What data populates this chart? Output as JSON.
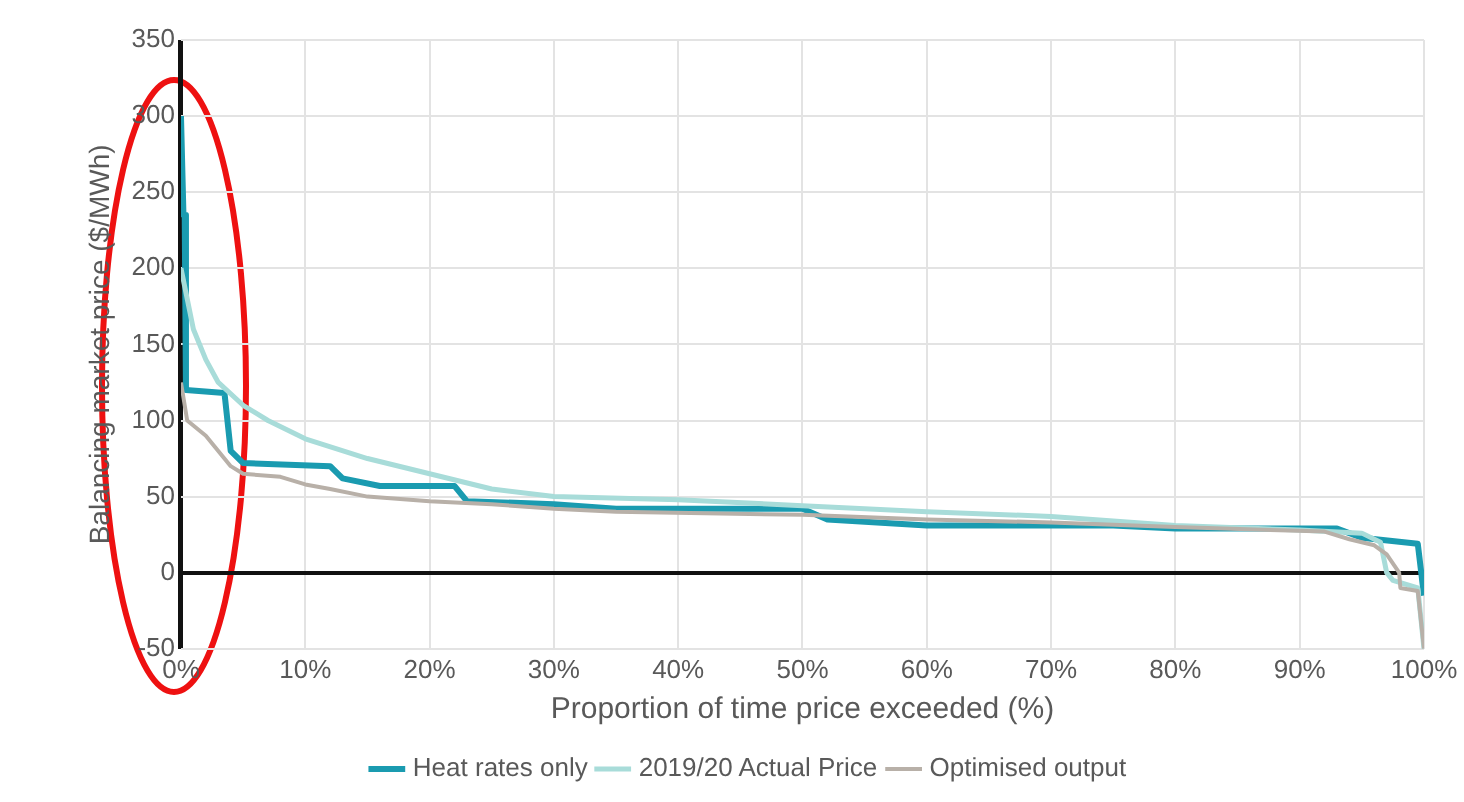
{
  "chart_data": {
    "type": "line",
    "xlabel": "Proportion of time price exceeded (%)",
    "ylabel": "Balancing market price ($/MWh)",
    "xlim": [
      0,
      100
    ],
    "xticks": [
      {
        "value": 0,
        "label": "0%"
      },
      {
        "value": 10,
        "label": "10%"
      },
      {
        "value": 20,
        "label": "20%"
      },
      {
        "value": 30,
        "label": "30%"
      },
      {
        "value": 40,
        "label": "40%"
      },
      {
        "value": 50,
        "label": "50%"
      },
      {
        "value": 60,
        "label": "60%"
      },
      {
        "value": 70,
        "label": "70%"
      },
      {
        "value": 80,
        "label": "80%"
      },
      {
        "value": 90,
        "label": "90%"
      },
      {
        "value": 100,
        "label": "100%"
      }
    ],
    "ylim": [
      -50,
      350
    ],
    "yticks": [
      -50,
      0,
      50,
      100,
      150,
      200,
      250,
      300,
      350
    ],
    "grid": true,
    "legend": "bottom",
    "marker": "none",
    "line_style": "solid",
    "series": [
      {
        "name": "Heat rates only",
        "color": "#1a9bb0",
        "x": [
          0,
          0.2,
          0.3,
          0.4,
          3.5,
          4,
          5,
          12,
          13,
          16,
          22,
          23,
          30,
          35,
          50,
          52,
          60,
          75,
          80,
          93,
          95,
          99.5,
          100
        ],
        "values": [
          300,
          235,
          235,
          120,
          118,
          80,
          72,
          70,
          62,
          57,
          57,
          47,
          45,
          42,
          42,
          35,
          31,
          31,
          29,
          29,
          23,
          19,
          -15
        ]
      },
      {
        "name": "2019/20 Actual Price",
        "color": "#a8dcd9",
        "x": [
          0,
          1,
          2,
          3,
          5,
          7,
          10,
          15,
          20,
          25,
          30,
          40,
          50,
          60,
          70,
          80,
          90,
          95,
          96.5,
          97,
          97.5,
          99.5,
          100
        ],
        "values": [
          200,
          160,
          140,
          125,
          110,
          100,
          88,
          75,
          65,
          55,
          50,
          48,
          44,
          40,
          37,
          31,
          28,
          26,
          20,
          0,
          -5,
          -10,
          -50
        ]
      },
      {
        "name": "Optimised output",
        "color": "#b8b0a8",
        "x": [
          0,
          0.5,
          2,
          3,
          4,
          5,
          8,
          10,
          12,
          15,
          20,
          25,
          30,
          35,
          50,
          60,
          70,
          80,
          92,
          94,
          96,
          97,
          98,
          98.1,
          99.5,
          100
        ],
        "values": [
          125,
          100,
          90,
          80,
          70,
          65,
          63,
          58,
          55,
          50,
          47,
          45,
          42,
          40,
          38,
          35,
          33,
          30,
          27,
          22,
          18,
          12,
          0,
          -10,
          -12,
          -50
        ]
      }
    ]
  }
}
